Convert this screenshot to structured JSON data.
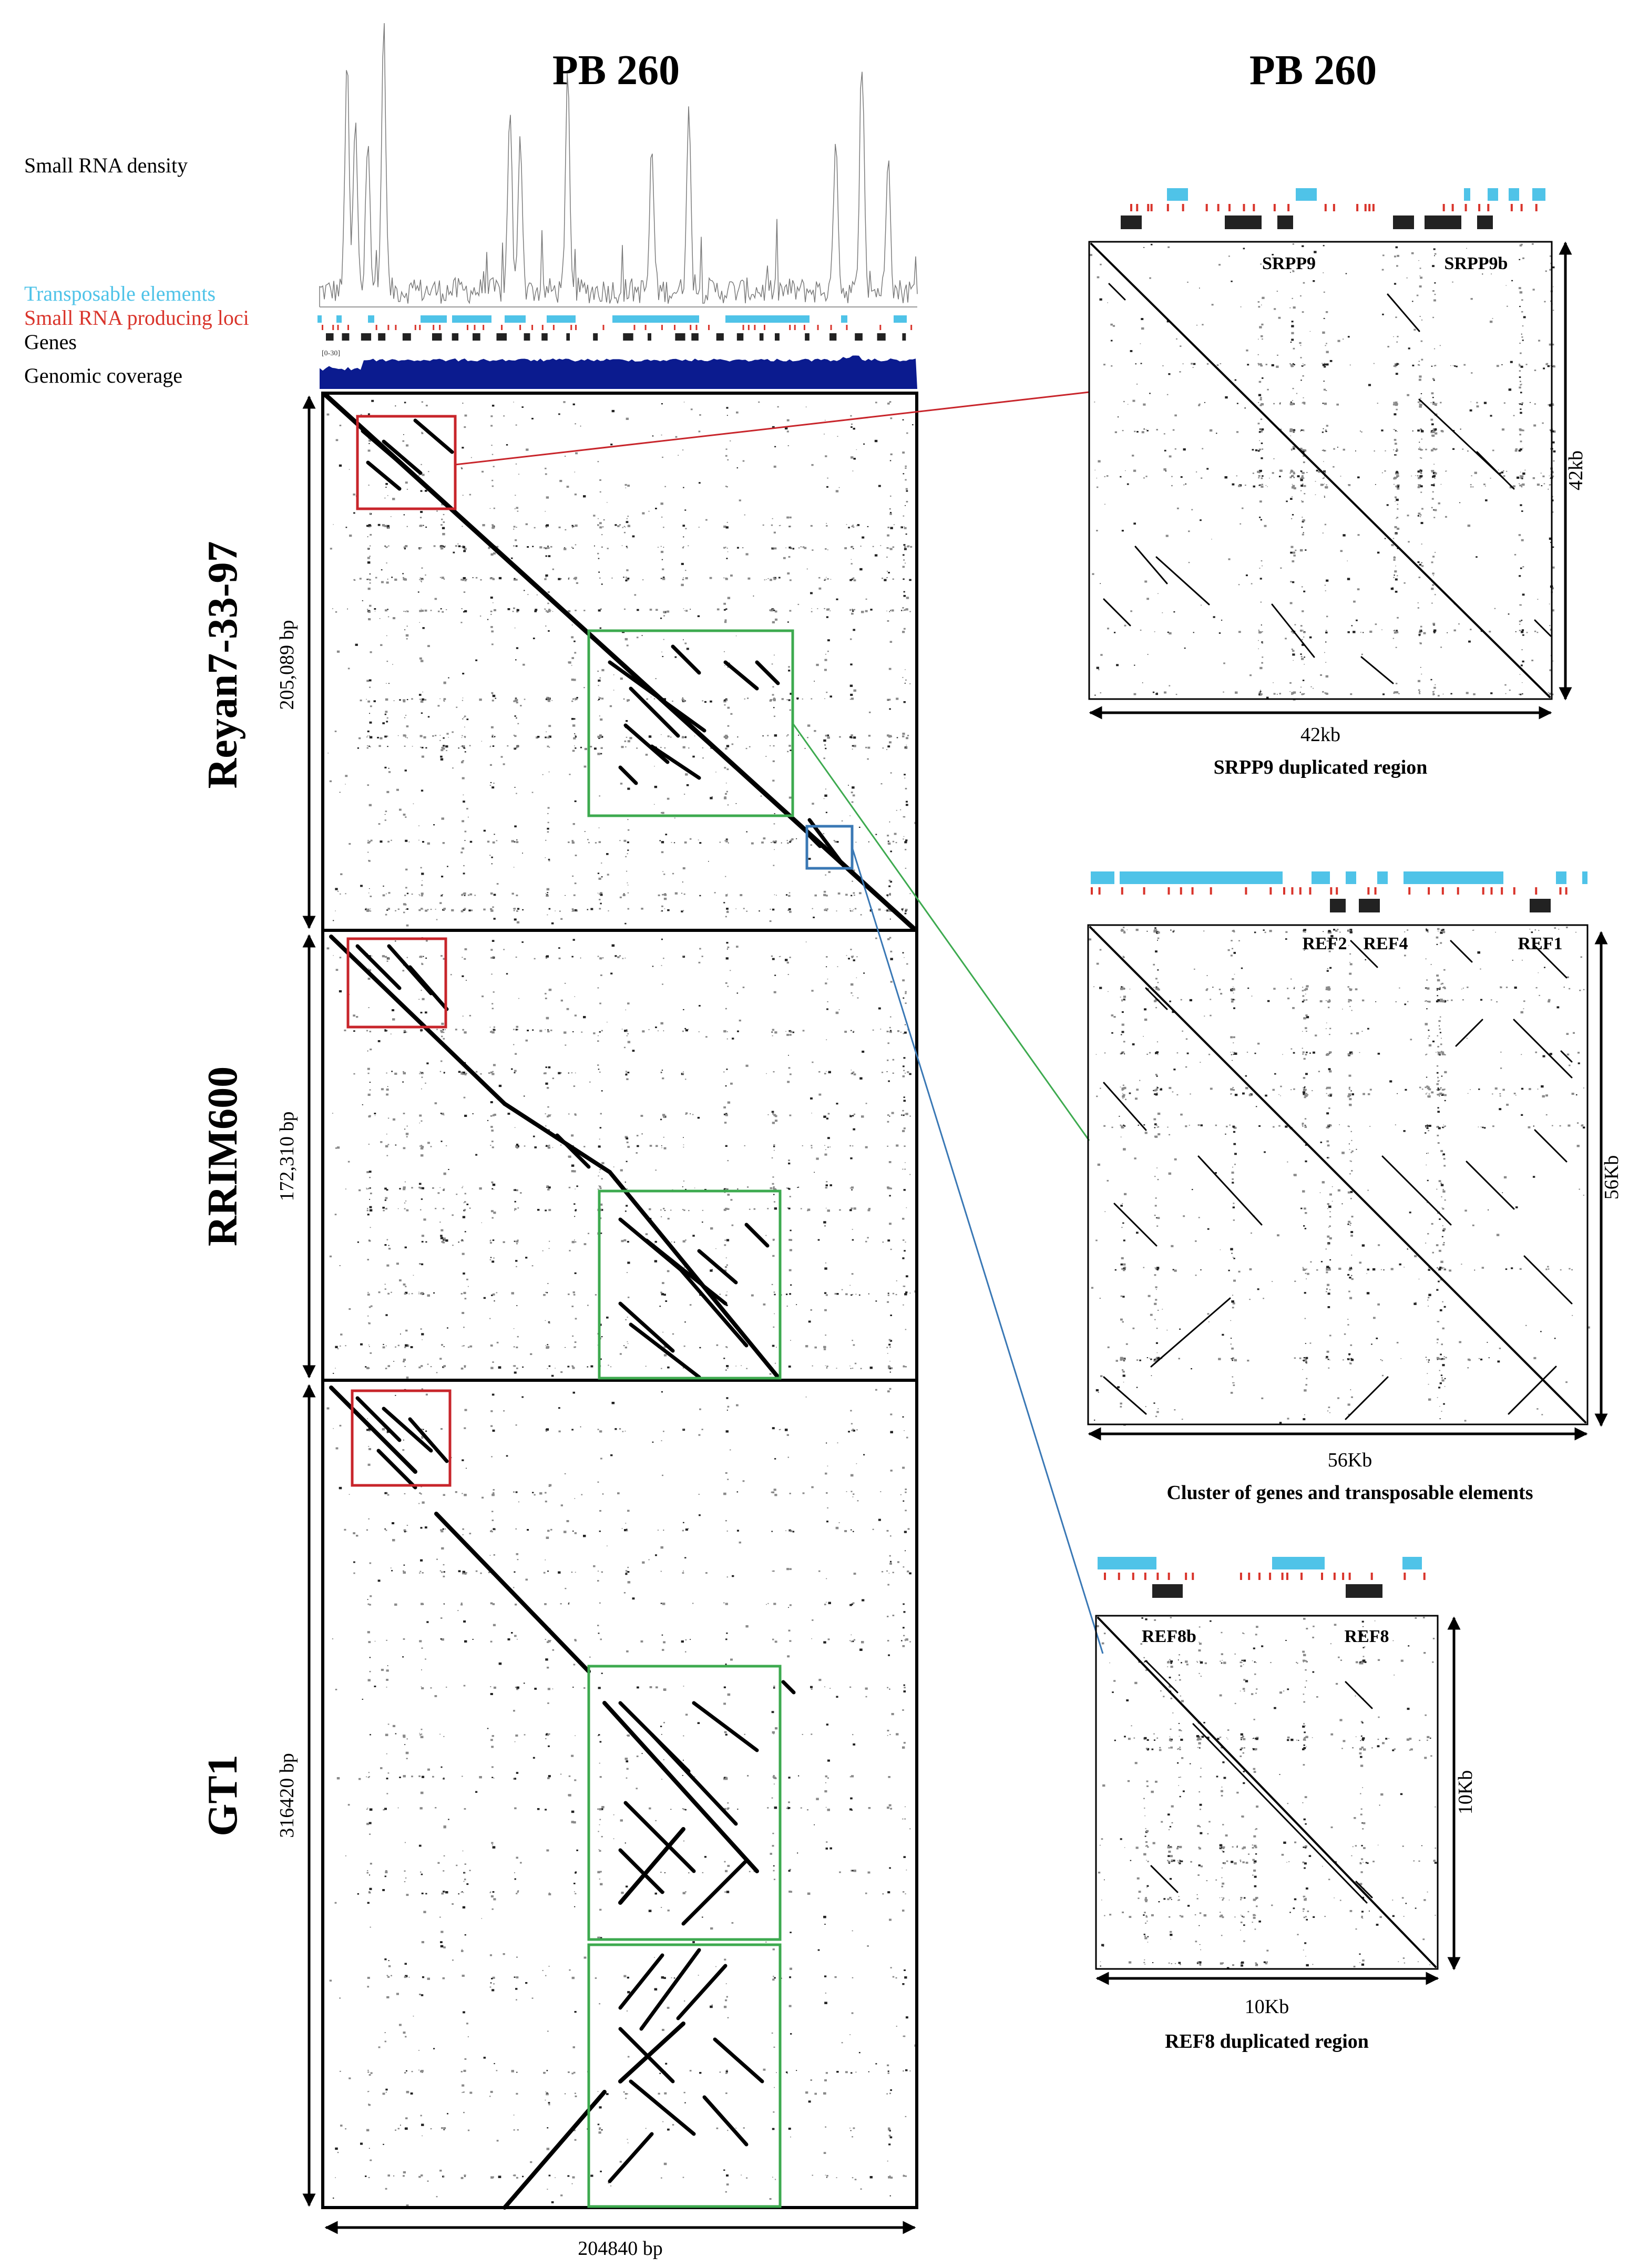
{
  "titles": {
    "left": "PB 260",
    "right": "PB 260"
  },
  "track_labels": {
    "density": "Small RNA density",
    "te": "Transposable elements",
    "srna": "Small RNA producing loci",
    "genes": "Genes",
    "coverage": "Genomic coverage",
    "scale_tag": "[0-30]"
  },
  "genomes": [
    {
      "name": "Reyan7-33-97",
      "length": "205,089 bp"
    },
    {
      "name": "RRIM600",
      "length": "172,310 bp"
    },
    {
      "name": "GT1",
      "length": "316420 bp"
    }
  ],
  "x_axis_length": "204840 bp",
  "zooms": [
    {
      "caption": "SRPP9 duplicated region",
      "x_size": "42kb",
      "y_size": "42kb",
      "gene_labels": [
        "SRPP9",
        "SRPP9b"
      ]
    },
    {
      "caption": "Cluster of genes and transposable elements",
      "x_size": "56Kb",
      "y_size": "56Kb",
      "gene_labels": [
        "REF2",
        "REF4",
        "REF1"
      ]
    },
    {
      "caption": "REF8 duplicated region",
      "x_size": "10Kb",
      "y_size": "10Kb",
      "gene_labels": [
        "REF8b",
        "REF8"
      ]
    }
  ],
  "colors": {
    "te": "#4fc3e8",
    "srna": "#d9342b",
    "genes": "#222222",
    "coverage": "#0b1b8f",
    "box_red": "#c8252b",
    "box_green": "#3daa4f",
    "box_blue": "#3a78b5"
  }
}
